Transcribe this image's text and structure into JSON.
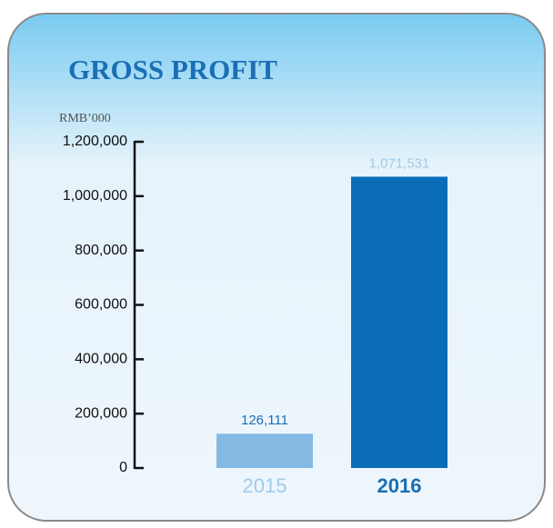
{
  "chart_data": {
    "type": "bar",
    "title": "GROSS PROFIT",
    "y_axis_label": "RMB’000",
    "categories": [
      "2015",
      "2016"
    ],
    "values": [
      126111,
      1071531
    ],
    "value_labels": [
      "126,111",
      "1,071,531"
    ],
    "colors": [
      "#84b9e3",
      "#0b6cb8"
    ],
    "ylim": [
      0,
      1200000
    ],
    "yticks": [
      0,
      {
        "value": 200000,
        "label": "200,000"
      },
      {
        "value": 400000,
        "label": "400,000"
      },
      {
        "value": 600000,
        "label": "600,000"
      },
      {
        "value": 800000,
        "label": "800,000"
      },
      {
        "value": 1000000,
        "label": "1,000,000"
      },
      {
        "value": 1200000,
        "label": "1,200,000"
      }
    ],
    "grid": false
  }
}
